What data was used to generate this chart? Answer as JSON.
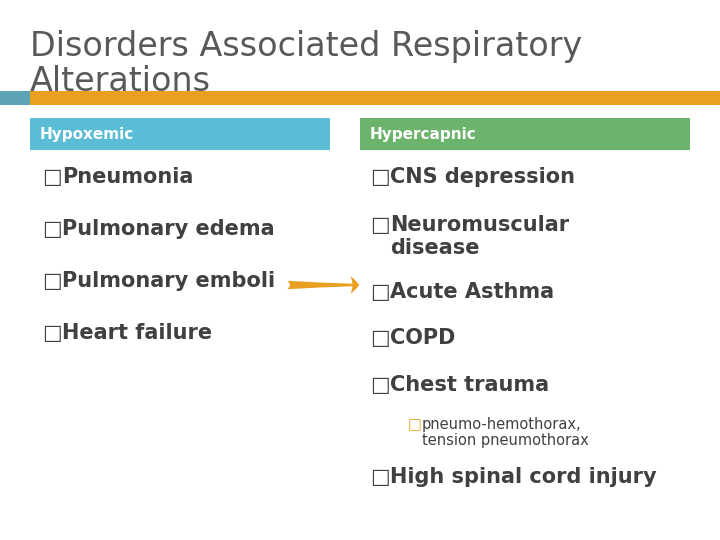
{
  "title_line1": "Disorders Associated Respiratory",
  "title_line2": "Alterations",
  "title_color": "#595959",
  "title_fontsize": 24,
  "bg_color": "#ffffff",
  "stripe_blue_color": "#5ba3b5",
  "stripe_gold_color": "#e8a020",
  "hypoxemic_header": "Hypoxemic",
  "hypercapnic_header": "Hypercapnic",
  "header_hypo_color": "#5bbcd6",
  "header_hyper_color": "#6cb36c",
  "header_text_color": "#ffffff",
  "hypoxemic_items": [
    "Pneumonia",
    "Pulmonary edema",
    "Pulmonary emboli",
    "Heart failure"
  ],
  "hypercapnic_items": [
    "CNS depression",
    "Neuromuscular\ndisease",
    "Acute Asthma",
    "COPD",
    "Chest trauma"
  ],
  "sub_item_line1": "pneumo-hemothorax,",
  "sub_item_line2": "tension pneumothorax",
  "last_item": "High spinal cord injury",
  "bullet_color": "#404040",
  "sub_bullet_color": "#e8a020",
  "arrow_color": "#e8a020",
  "item_fontsize": 15,
  "header_fontsize": 11,
  "sub_item_fontsize": 10.5
}
